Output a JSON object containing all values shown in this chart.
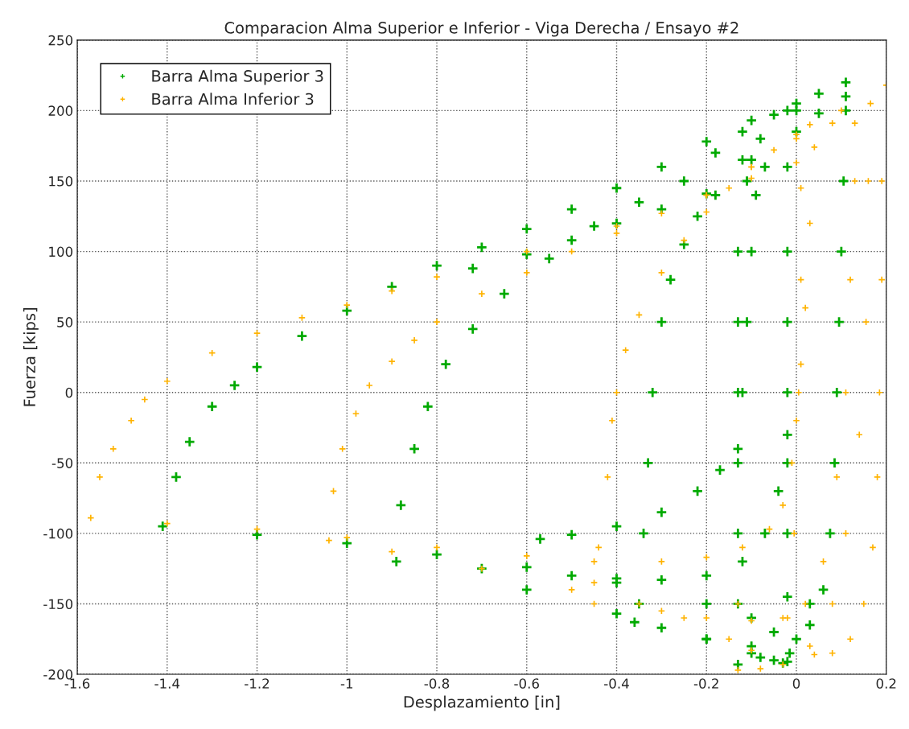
{
  "chart_data": {
    "type": "scatter",
    "title": "Comparacion Alma Superior e Inferior - Viga Derecha / Ensayo #2",
    "xlabel": "Desplazamiento [in]",
    "ylabel": "Fuerza [kips]",
    "xlim": [
      -1.6,
      0.2
    ],
    "xticks": [
      -1.6,
      -1.4,
      -1.2,
      -1,
      -0.8,
      -0.6,
      -0.4,
      -0.2,
      0,
      0.2
    ],
    "ylim": [
      -200,
      250
    ],
    "yticks": [
      -200,
      -150,
      -100,
      -50,
      0,
      50,
      100,
      150,
      200,
      250
    ],
    "grid": true,
    "legend": "top left",
    "marker": "cross",
    "series": [
      {
        "name": "Barra Alma Superior 3",
        "color": "#00aa00",
        "x": [
          -1.41,
          -1.38,
          -1.35,
          -1.3,
          -1.25,
          -1.2,
          -1.1,
          -1.0,
          -0.9,
          -0.8,
          -0.7,
          -0.6,
          -0.5,
          -0.4,
          -0.3,
          -0.2,
          -0.1,
          0.0,
          0.05,
          0.11,
          -0.72,
          -0.6,
          -0.5,
          -0.4,
          -0.3,
          -0.2,
          -0.1,
          0.0,
          0.05,
          0.11,
          -0.89,
          -0.88,
          -0.85,
          -0.82,
          -0.78,
          -0.72,
          -0.65,
          -0.55,
          -0.45,
          -0.35,
          -0.25,
          -0.18,
          -0.12,
          -0.05,
          0.0,
          -0.35,
          -0.34,
          -0.33,
          -0.32,
          -0.3,
          -0.28,
          -0.25,
          -0.22,
          -0.18,
          -0.12,
          -0.08,
          -0.02,
          -0.57,
          -0.5,
          -0.4,
          -0.3,
          -0.22,
          -0.17,
          -0.13,
          -0.12,
          -0.11,
          -0.1,
          -0.09,
          -0.07,
          -0.13,
          -0.13,
          -0.13,
          -0.13,
          -0.13,
          -0.13,
          -0.13,
          -0.11,
          0.11,
          0.105,
          0.1,
          0.095,
          0.09,
          0.085,
          0.075,
          0.06,
          0.03,
          0.0,
          -0.02,
          -0.02,
          -0.02,
          -0.02,
          -0.02,
          -0.02,
          -0.02,
          -0.015,
          -1.2,
          -1.0,
          -0.8,
          -0.6,
          -0.4,
          -0.2,
          -0.1,
          -0.05,
          -0.7,
          -0.5,
          -0.4,
          -0.3,
          -0.2,
          -0.12,
          -0.07,
          -0.04,
          -0.02,
          -0.36,
          -0.3,
          -0.2,
          -0.1,
          -0.05,
          -0.02,
          -0.6,
          -0.4,
          -0.2,
          -0.1,
          0.03,
          -0.08,
          -0.03
        ],
        "values": [
          -95,
          -60,
          -35,
          -10,
          5,
          18,
          40,
          58,
          75,
          90,
          103,
          116,
          130,
          145,
          160,
          178,
          193,
          205,
          212,
          220,
          88,
          98,
          108,
          120,
          130,
          141,
          165,
          185,
          198,
          210,
          -120,
          -80,
          -40,
          -10,
          20,
          45,
          70,
          95,
          118,
          135,
          150,
          170,
          185,
          197,
          200,
          -150,
          -100,
          -50,
          0,
          50,
          80,
          105,
          125,
          140,
          165,
          180,
          200,
          -104,
          -101,
          -95,
          -85,
          -70,
          -55,
          -40,
          0,
          50,
          100,
          140,
          160,
          100,
          50,
          0,
          -50,
          -100,
          -150,
          -193,
          150,
          200,
          150,
          100,
          50,
          0,
          -50,
          -100,
          -140,
          -165,
          -175,
          160,
          100,
          50,
          0,
          -50,
          -100,
          -145,
          -185,
          -101,
          -107,
          -115,
          -124,
          -135,
          -150,
          -160,
          -170,
          -125,
          -130,
          -132,
          -133,
          -130,
          -120,
          -100,
          -70,
          -30,
          -163,
          -167,
          -175,
          -185,
          -190,
          -191,
          -140,
          -157,
          -175,
          -180,
          -150,
          -188,
          -192
        ]
      },
      {
        "name": "Barra Alma Inferior 3",
        "color": "#ffb300",
        "x": [
          -1.57,
          -1.55,
          -1.52,
          -1.48,
          -1.45,
          -1.4,
          -1.3,
          -1.2,
          -1.1,
          -1.0,
          -0.9,
          -0.8,
          -0.6,
          -0.4,
          -0.2,
          -0.1,
          0.0,
          0.04,
          -1.04,
          -1.03,
          -1.01,
          -0.98,
          -0.95,
          -0.9,
          -0.85,
          -0.8,
          -0.7,
          -0.6,
          -0.5,
          -0.4,
          -0.3,
          -0.2,
          -0.1,
          0.0,
          0.1,
          0.2,
          -0.45,
          -0.44,
          -0.42,
          -0.41,
          -0.4,
          -0.38,
          -0.35,
          -0.3,
          -0.25,
          -0.2,
          -0.15,
          -0.1,
          -0.05,
          0.0,
          0.03,
          0.08,
          0.13,
          -1.4,
          -1.2,
          -1.0,
          -0.8,
          -0.6,
          -0.45,
          -0.3,
          -0.2,
          -0.12,
          -0.06,
          -0.03,
          -0.01,
          0.0,
          0.01,
          0.02,
          0.03,
          -0.9,
          -0.7,
          -0.5,
          -0.35,
          -0.25,
          -0.15,
          -0.1,
          0.04,
          -0.3,
          -0.2,
          -0.1,
          -0.03,
          0.02,
          0.06,
          0.09,
          0.11,
          0.12,
          0.13,
          -0.13,
          -0.08,
          -0.03,
          0.03,
          0.08,
          0.11,
          0.14,
          0.155,
          0.16,
          0.165,
          0.19,
          0.19,
          0.185,
          0.18,
          0.17,
          0.15,
          0.12,
          0.08,
          0.01,
          0.01,
          0.005,
          -0.005,
          -0.02,
          -0.13,
          -0.45
        ],
        "values": [
          -89,
          -60,
          -40,
          -20,
          -5,
          8,
          28,
          42,
          53,
          62,
          72,
          82,
          100,
          118,
          140,
          152,
          163,
          174,
          -105,
          -70,
          -40,
          -15,
          5,
          22,
          37,
          50,
          70,
          85,
          100,
          113,
          127,
          140,
          160,
          180,
          200,
          218,
          -150,
          -110,
          -60,
          -20,
          0,
          30,
          55,
          85,
          108,
          128,
          145,
          160,
          172,
          183,
          190,
          191,
          191,
          -93,
          -97,
          -103,
          -110,
          -116,
          -120,
          -120,
          -117,
          -110,
          -97,
          -80,
          -50,
          -20,
          20,
          60,
          120,
          -113,
          -125,
          -140,
          -150,
          -160,
          -175,
          -183,
          -186,
          -155,
          -160,
          -162,
          -160,
          -150,
          -120,
          -60,
          0,
          80,
          150,
          -197,
          -196,
          -193,
          -180,
          -150,
          -100,
          -30,
          50,
          150,
          205,
          150,
          80,
          0,
          -60,
          -110,
          -150,
          -175,
          -185,
          145,
          80,
          0,
          -100,
          -160,
          -150,
          -135
        ]
      }
    ]
  }
}
